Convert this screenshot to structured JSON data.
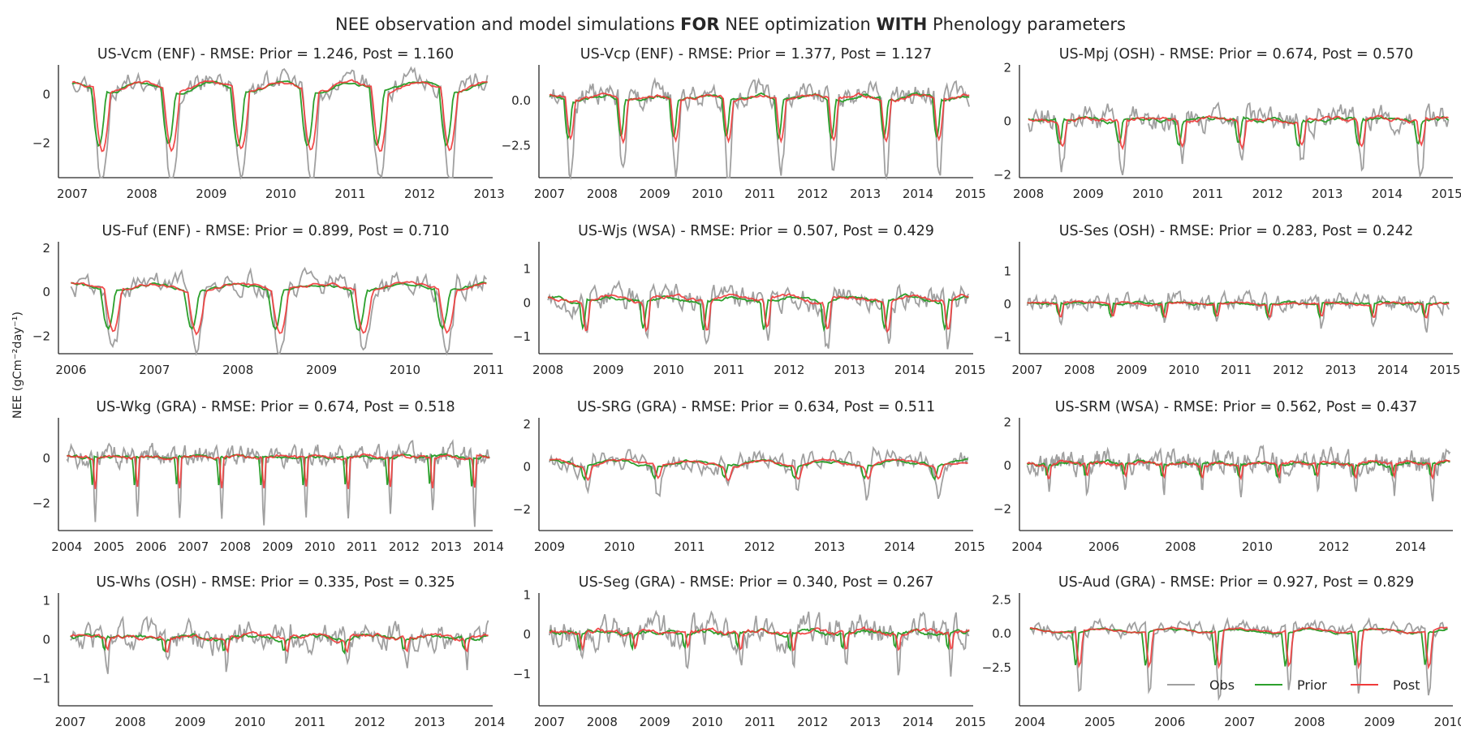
{
  "figure": {
    "title_parts": [
      {
        "text": "NEE observation and model simulations ",
        "bold": false
      },
      {
        "text": "FOR",
        "bold": true
      },
      {
        "text": " NEE optimization ",
        "bold": false
      },
      {
        "text": "WITH",
        "bold": true
      },
      {
        "text": " Phenology parameters",
        "bold": false
      }
    ],
    "ylabel": "NEE (gCm⁻²day⁻¹)",
    "colors": {
      "obs": "#a0a0a0",
      "prior": "#2ca02c",
      "post": "#f03a3a"
    },
    "legend": {
      "placement": "lower-right of last panel",
      "labels": [
        "Obs",
        "Prior",
        "Post"
      ]
    }
  },
  "chart_data": [
    {
      "type": "line",
      "site": "US-Vcm",
      "pft": "ENF",
      "title": "US-Vcm (ENF) - RMSE: Prior = 1.246, Post = 1.160",
      "rmse_prior": 1.246,
      "rmse_post": 1.16,
      "xlim": [
        2006.8,
        2013.05
      ],
      "xticks": [
        2007,
        2008,
        2009,
        2010,
        2011,
        2012,
        2013
      ],
      "ylim": [
        -3.4,
        1.2
      ],
      "yticks": [
        -2,
        0
      ],
      "ytick_labels": [
        "−2",
        "0"
      ],
      "profile": {
        "base": 0.5,
        "amp": 3.1,
        "start": 0.35,
        "len": 0.28,
        "obsExtra": 0.9,
        "noise": 0.35,
        "priorShift": 0.02,
        "seed": 11
      },
      "series": [
        {
          "name": "Obs"
        },
        {
          "name": "Prior"
        },
        {
          "name": "Post"
        }
      ]
    },
    {
      "type": "line",
      "site": "US-Vcp",
      "pft": "ENF",
      "title": "US-Vcp (ENF) - RMSE: Prior = 1.377, Post = 1.127",
      "rmse_prior": 1.377,
      "rmse_post": 1.127,
      "xlim": [
        2006.8,
        2015.05
      ],
      "xticks": [
        2007,
        2008,
        2009,
        2010,
        2011,
        2012,
        2013,
        2014,
        2015
      ],
      "ylim": [
        -4.3,
        2.0
      ],
      "yticks": [
        -2.5,
        0.0
      ],
      "ytick_labels": [
        "−2.5",
        "0.0"
      ],
      "profile": {
        "base": 0.3,
        "amp": 2.6,
        "start": 0.33,
        "len": 0.2,
        "obsExtra": 1.4,
        "noise": 0.5,
        "priorShift": 0.02,
        "seed": 23
      },
      "series": [
        {
          "name": "Obs"
        },
        {
          "name": "Prior"
        },
        {
          "name": "Post"
        }
      ]
    },
    {
      "type": "line",
      "site": "US-Mpj",
      "pft": "OSH",
      "title": "US-Mpj (OSH) - RMSE: Prior = 0.674, Post = 0.570",
      "rmse_prior": 0.674,
      "rmse_post": 0.57,
      "xlim": [
        2007.85,
        2015.1
      ],
      "xticks": [
        2008,
        2009,
        2010,
        2011,
        2012,
        2013,
        2014,
        2015
      ],
      "ylim": [
        -2.1,
        2.1
      ],
      "yticks": [
        -2,
        0,
        2
      ],
      "ytick_labels": [
        "−2",
        "0",
        "2"
      ],
      "profile": {
        "base": 0.1,
        "amp": 1.0,
        "start": 0.5,
        "len": 0.15,
        "obsExtra": 0.5,
        "noise": 0.4,
        "priorShift": 0.03,
        "seed": 37
      },
      "series": [
        {
          "name": "Obs"
        },
        {
          "name": "Prior"
        },
        {
          "name": "Post"
        }
      ]
    },
    {
      "type": "line",
      "site": "US-Fuf",
      "pft": "ENF",
      "title": "US-Fuf (ENF) - RMSE: Prior = 0.899, Post = 0.710",
      "rmse_prior": 0.899,
      "rmse_post": 0.71,
      "xlim": [
        2005.85,
        2011.05
      ],
      "xticks": [
        2006,
        2007,
        2008,
        2009,
        2010,
        2011
      ],
      "ylim": [
        -2.8,
        2.3
      ],
      "yticks": [
        -2,
        0,
        2
      ],
      "ytick_labels": [
        "−2",
        "0",
        "2"
      ],
      "profile": {
        "base": 0.4,
        "amp": 1.9,
        "start": 0.4,
        "len": 0.2,
        "obsExtra": 0.6,
        "noise": 0.45,
        "priorShift": 0.03,
        "seed": 41
      },
      "series": [
        {
          "name": "Obs"
        },
        {
          "name": "Prior"
        },
        {
          "name": "Post"
        }
      ]
    },
    {
      "type": "line",
      "site": "US-Wjs",
      "pft": "WSA",
      "title": "US-Wjs (WSA) - RMSE: Prior = 0.507, Post = 0.429",
      "rmse_prior": 0.507,
      "rmse_post": 0.429,
      "xlim": [
        2007.85,
        2015.05
      ],
      "xticks": [
        2008,
        2009,
        2010,
        2011,
        2012,
        2013,
        2014,
        2015
      ],
      "ylim": [
        -1.5,
        1.8
      ],
      "yticks": [
        -1,
        0,
        1
      ],
      "ytick_labels": [
        "−1",
        "0",
        "1"
      ],
      "profile": {
        "base": 0.2,
        "amp": 0.8,
        "start": 0.55,
        "len": 0.12,
        "obsExtra": 0.3,
        "noise": 0.3,
        "priorShift": 0.03,
        "seed": 53
      },
      "series": [
        {
          "name": "Obs"
        },
        {
          "name": "Prior"
        },
        {
          "name": "Post"
        }
      ]
    },
    {
      "type": "line",
      "site": "US-Ses",
      "pft": "OSH",
      "title": "US-Ses (OSH) - RMSE: Prior = 0.283, Post = 0.242",
      "rmse_prior": 0.283,
      "rmse_post": 0.242,
      "xlim": [
        2006.85,
        2015.15
      ],
      "xticks": [
        2007,
        2008,
        2009,
        2010,
        2011,
        2012,
        2013,
        2014,
        2015
      ],
      "ylim": [
        -1.5,
        1.9
      ],
      "yticks": [
        -1,
        0,
        1
      ],
      "ytick_labels": [
        "−1",
        "0",
        "1"
      ],
      "profile": {
        "base": 0.05,
        "amp": 0.35,
        "start": 0.55,
        "len": 0.1,
        "obsExtra": 0.2,
        "noise": 0.2,
        "priorShift": 0.02,
        "seed": 61
      },
      "series": [
        {
          "name": "Obs"
        },
        {
          "name": "Prior"
        },
        {
          "name": "Post"
        }
      ]
    },
    {
      "type": "line",
      "site": "US-Wkg",
      "pft": "GRA",
      "title": "US-Wkg (GRA) - RMSE: Prior = 0.674, Post = 0.518",
      "rmse_prior": 0.674,
      "rmse_post": 0.518,
      "xlim": [
        2003.8,
        2014.1
      ],
      "xticks": [
        2004,
        2005,
        2006,
        2007,
        2008,
        2009,
        2010,
        2011,
        2012,
        2013,
        2014
      ],
      "ylim": [
        -3.2,
        1.8
      ],
      "yticks": [
        -2,
        0
      ],
      "ytick_labels": [
        "−2",
        "0"
      ],
      "profile": {
        "base": 0.1,
        "amp": 1.1,
        "start": 0.58,
        "len": 0.08,
        "obsExtra": 0.8,
        "noise": 0.35,
        "priorShift": 0.04,
        "seed": 71
      },
      "series": [
        {
          "name": "Obs"
        },
        {
          "name": "Prior"
        },
        {
          "name": "Post"
        }
      ]
    },
    {
      "type": "line",
      "site": "US-SRG",
      "pft": "GRA",
      "title": "US-SRG (GRA) - RMSE: Prior = 0.634, Post = 0.511",
      "rmse_prior": 0.634,
      "rmse_post": 0.511,
      "xlim": [
        2008.85,
        2015.05
      ],
      "xticks": [
        2009,
        2010,
        2011,
        2012,
        2013,
        2014,
        2015
      ],
      "ylim": [
        -3.0,
        2.3
      ],
      "yticks": [
        -2,
        0,
        2
      ],
      "ytick_labels": [
        "−2",
        "0",
        "2"
      ],
      "profile": {
        "base": 0.3,
        "amp": 0.9,
        "start": 0.55,
        "len": 0.15,
        "obsExtra": 0.9,
        "noise": 0.4,
        "priorShift": 0.03,
        "seed": 83
      },
      "series": [
        {
          "name": "Obs"
        },
        {
          "name": "Prior"
        },
        {
          "name": "Post"
        }
      ]
    },
    {
      "type": "line",
      "site": "US-SRM",
      "pft": "WSA",
      "title": "US-SRM (WSA) - RMSE: Prior = 0.562, Post = 0.437",
      "rmse_prior": 0.562,
      "rmse_post": 0.437,
      "xlim": [
        2003.8,
        2015.1
      ],
      "xticks": [
        2004,
        2006,
        2008,
        2010,
        2012,
        2014
      ],
      "ylim": [
        -3.0,
        2.2
      ],
      "yticks": [
        -2,
        0,
        2
      ],
      "ytick_labels": [
        "−2",
        "0",
        "2"
      ],
      "profile": {
        "base": 0.15,
        "amp": 0.7,
        "start": 0.55,
        "len": 0.13,
        "obsExtra": 0.8,
        "noise": 0.4,
        "priorShift": 0.03,
        "seed": 97
      },
      "series": [
        {
          "name": "Obs"
        },
        {
          "name": "Prior"
        },
        {
          "name": "Post"
        }
      ]
    },
    {
      "type": "line",
      "site": "US-Whs",
      "pft": "OSH",
      "title": "US-Whs (OSH) - RMSE: Prior = 0.335, Post = 0.325",
      "rmse_prior": 0.335,
      "rmse_post": 0.325,
      "xlim": [
        2006.8,
        2014.05
      ],
      "xticks": [
        2007,
        2008,
        2009,
        2010,
        2011,
        2012,
        2013,
        2014
      ],
      "ylim": [
        -1.7,
        1.2
      ],
      "yticks": [
        -1,
        0,
        1
      ],
      "ytick_labels": [
        "−1",
        "0",
        "1"
      ],
      "profile": {
        "base": 0.1,
        "amp": 0.4,
        "start": 0.6,
        "len": 0.1,
        "obsExtra": 0.5,
        "noise": 0.3,
        "priorShift": 0.03,
        "seed": 103
      },
      "series": [
        {
          "name": "Obs"
        },
        {
          "name": "Prior"
        },
        {
          "name": "Post"
        }
      ]
    },
    {
      "type": "line",
      "site": "US-Seg",
      "pft": "GRA",
      "title": "US-Seg (GRA) - RMSE: Prior = 0.340, Post = 0.267",
      "rmse_prior": 0.34,
      "rmse_post": 0.267,
      "xlim": [
        2006.8,
        2015.05
      ],
      "xticks": [
        2007,
        2008,
        2009,
        2010,
        2011,
        2012,
        2013,
        2014,
        2015
      ],
      "ylim": [
        -1.8,
        1.05
      ],
      "yticks": [
        -1,
        0,
        1
      ],
      "ytick_labels": [
        "−1",
        "0",
        "1"
      ],
      "profile": {
        "base": 0.1,
        "amp": 0.45,
        "start": 0.6,
        "len": 0.1,
        "obsExtra": 0.4,
        "noise": 0.3,
        "priorShift": 0.04,
        "seed": 113
      },
      "series": [
        {
          "name": "Obs"
        },
        {
          "name": "Prior"
        },
        {
          "name": "Post"
        }
      ]
    },
    {
      "type": "line",
      "site": "US-Aud",
      "pft": "GRA",
      "title": "US-Aud (GRA) - RMSE: Prior = 0.927, Post = 0.829",
      "rmse_prior": 0.927,
      "rmse_post": 0.829,
      "xlim": [
        2003.85,
        2010.05
      ],
      "xticks": [
        2004,
        2005,
        2006,
        2007,
        2008,
        2009,
        2010
      ],
      "ylim": [
        -5.3,
        3.0
      ],
      "yticks": [
        -2.5,
        0.0,
        2.5
      ],
      "ytick_labels": [
        "−2.5",
        "0.0",
        "2.5"
      ],
      "profile": {
        "base": 0.4,
        "amp": 2.6,
        "start": 0.65,
        "len": 0.1,
        "obsExtra": 1.2,
        "noise": 0.45,
        "priorShift": 0.03,
        "seed": 127
      },
      "series": [
        {
          "name": "Obs"
        },
        {
          "name": "Prior"
        },
        {
          "name": "Post"
        }
      ]
    }
  ]
}
